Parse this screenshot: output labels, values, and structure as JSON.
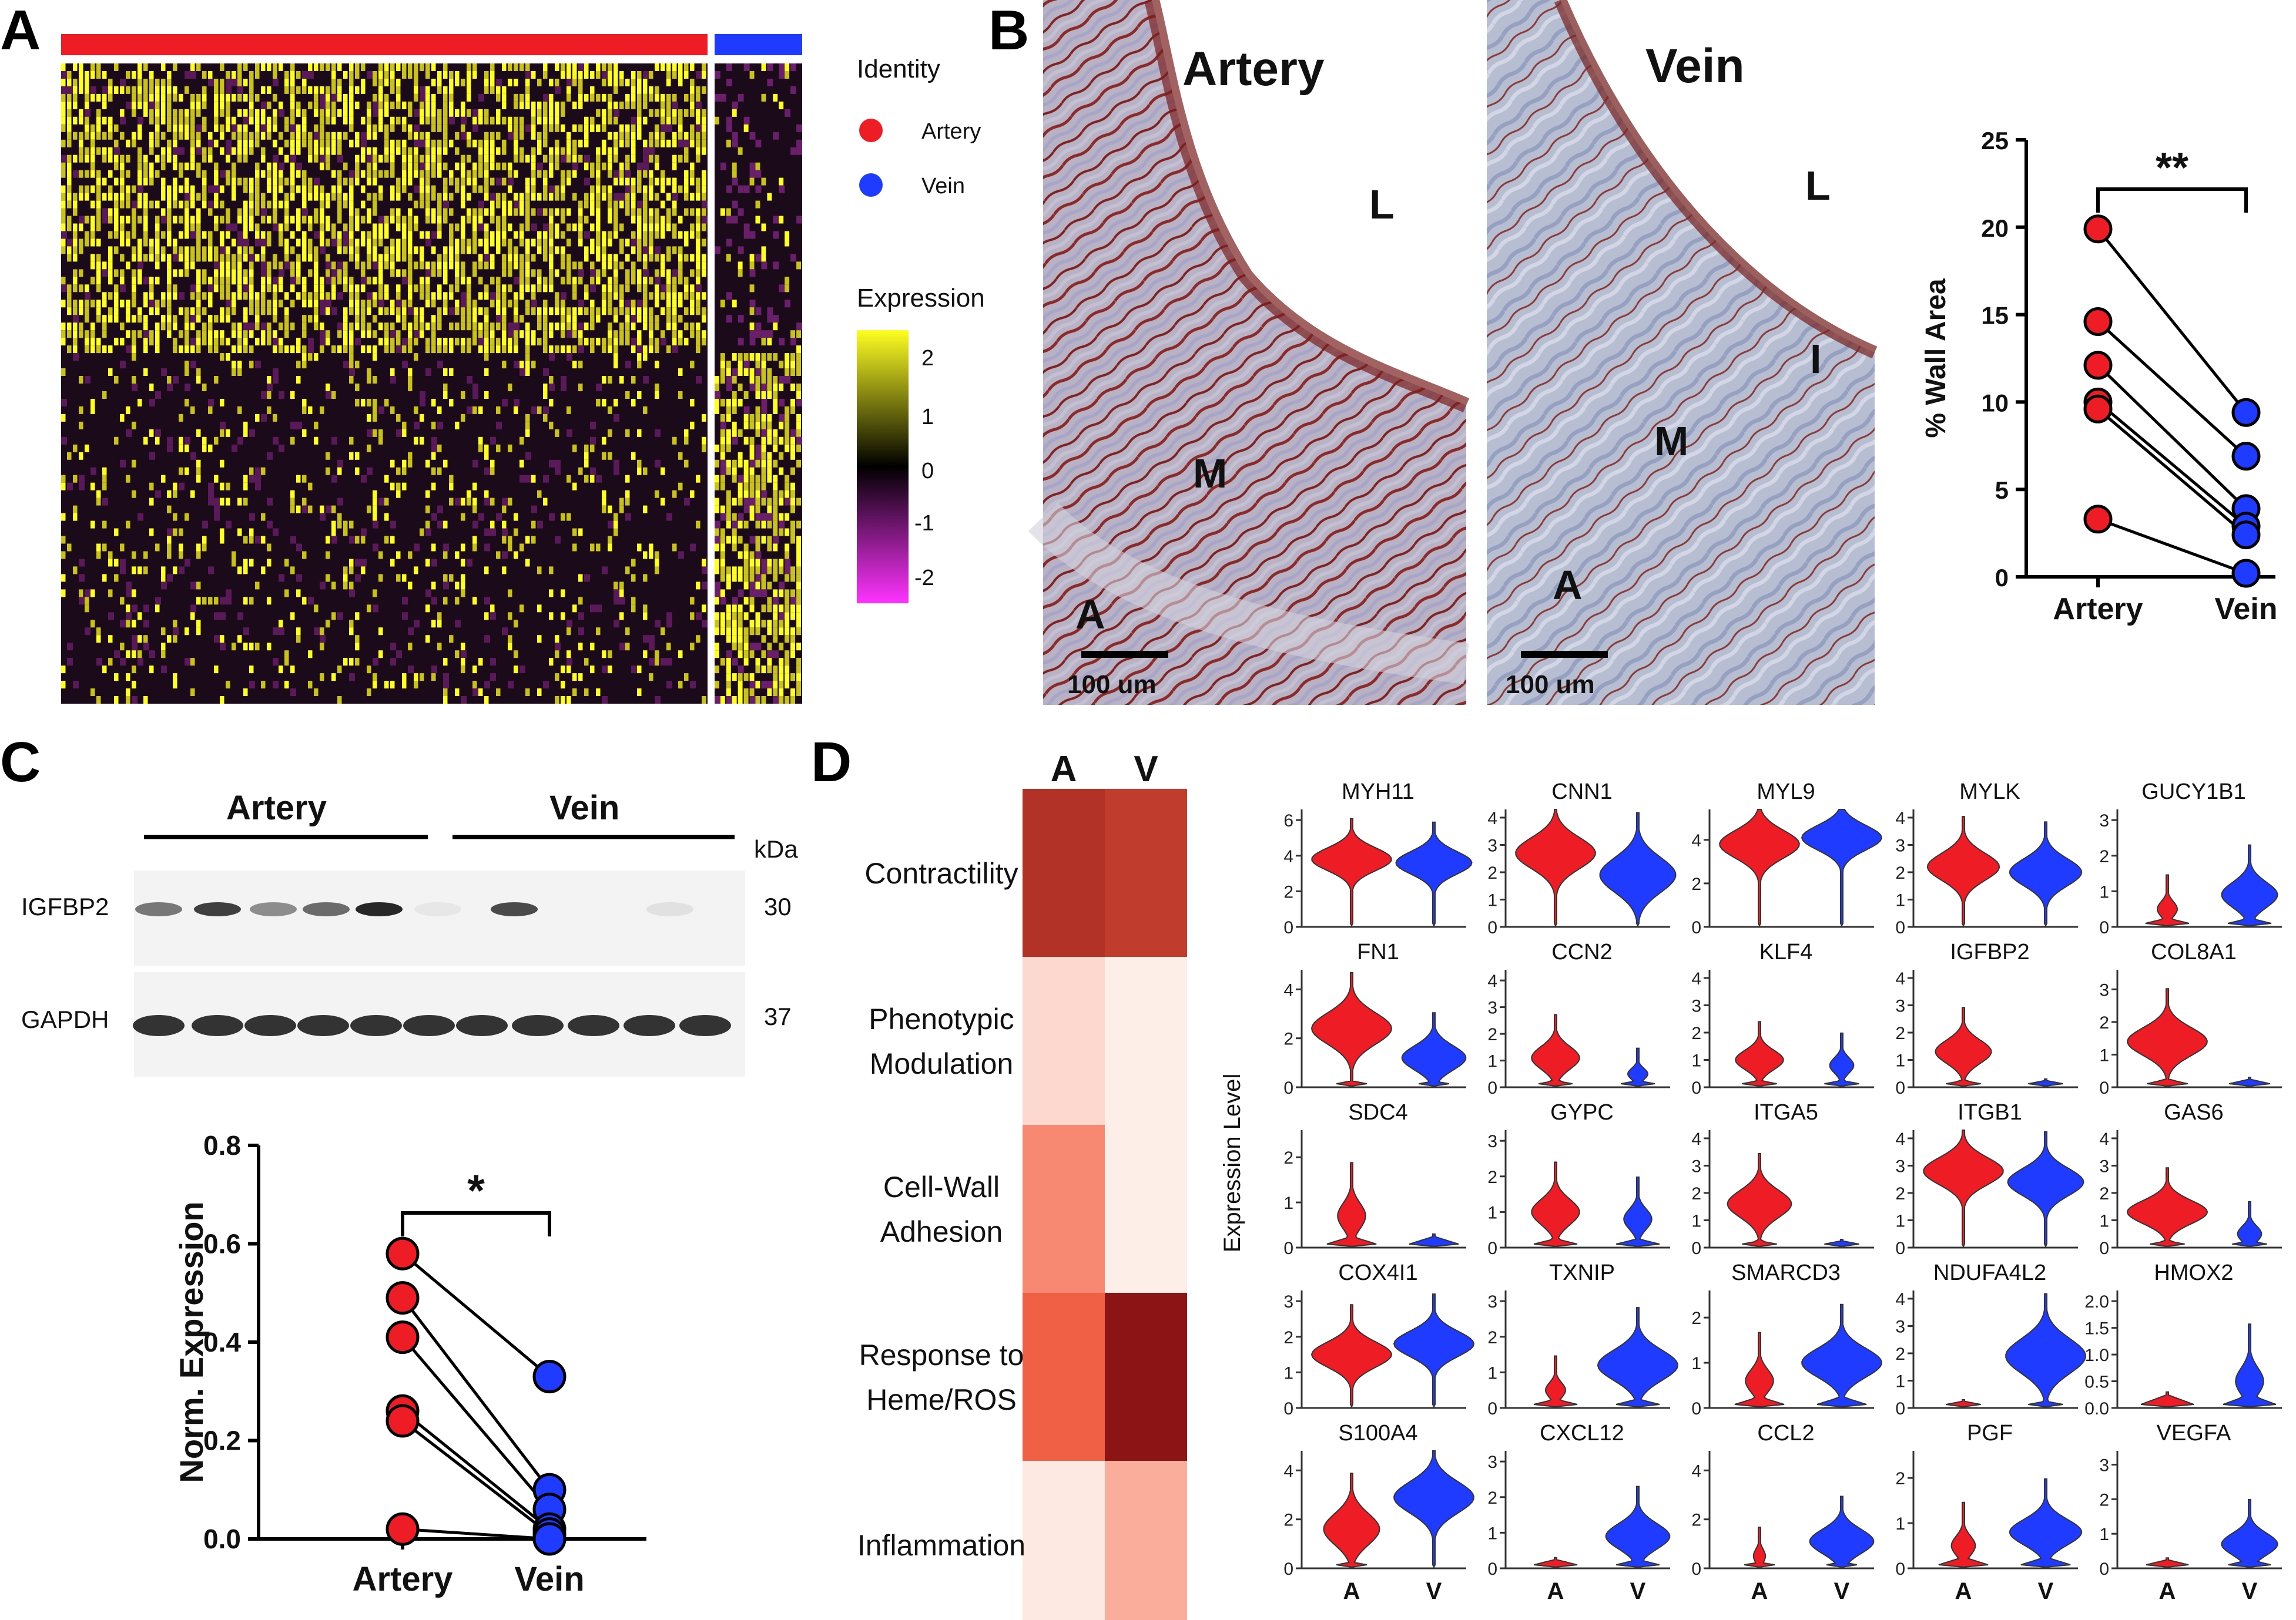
{
  "panels": {
    "a": "A",
    "b": "B",
    "c": "C",
    "d": "D"
  },
  "colors": {
    "artery": "#ee1c24",
    "vein": "#1f3bff",
    "heat_high": "#ffff22",
    "heat_mid": "#000000",
    "heat_low": "#ff33ff"
  },
  "heatmap_a": {
    "legend_identity_title": "Identity",
    "legend_identity": [
      {
        "label": "Artery",
        "color": "#ee1c24"
      },
      {
        "label": "Vein",
        "color": "#1f3bff"
      }
    ],
    "legend_expression_title": "Expression",
    "scale_ticks": [
      "2",
      "1",
      "0",
      "-1",
      "-2"
    ]
  },
  "histology_b": {
    "artery": {
      "title": "Artery",
      "labels": [
        "L",
        "M",
        "A"
      ],
      "scale": "100 um"
    },
    "vein": {
      "title": "Vein",
      "labels": [
        "L",
        "I",
        "M",
        "A"
      ],
      "scale": "100 um"
    }
  },
  "western_c": {
    "group_labels": [
      "Artery",
      "Vein"
    ],
    "kda_label": "kDa",
    "bands": [
      {
        "protein": "IGFBP2",
        "kda": "30"
      },
      {
        "protein": "GAPDH",
        "kda": "37"
      }
    ]
  },
  "heat_d": {
    "columns": [
      "A",
      "V"
    ],
    "rows": [
      {
        "label_lines": [
          "Contractility"
        ],
        "a": 0.85,
        "v": 0.8
      },
      {
        "label_lines": [
          "Phenotypic",
          "Modulation"
        ],
        "a": 0.12,
        "v": 0.03
      },
      {
        "label_lines": [
          "Cell-Wall",
          "Adhesion"
        ],
        "a": 0.45,
        "v": 0.03
      },
      {
        "label_lines": [
          "Response to",
          "Heme/ROS"
        ],
        "a": 0.62,
        "v": 1.0
      },
      {
        "label_lines": [
          "Inflammation"
        ],
        "a": 0.05,
        "v": 0.3
      }
    ]
  },
  "violin_d": {
    "ylabel": "Expression Level",
    "xcats": [
      "A",
      "V"
    ]
  },
  "chart_data": [
    {
      "type": "scatter",
      "title": "",
      "ylabel": "% Wall Area",
      "categories": [
        "Artery",
        "Vein"
      ],
      "ylim": [
        0,
        25
      ],
      "yticks": [
        "0",
        "5",
        "10",
        "15",
        "20",
        "25"
      ],
      "annotation": "**",
      "series": [
        {
          "name": "Artery",
          "values": [
            19.9,
            14.6,
            12.1,
            10.0,
            9.6,
            3.3
          ]
        },
        {
          "name": "Vein",
          "values": [
            9.4,
            6.9,
            3.9,
            2.9,
            2.4,
            0.2
          ]
        }
      ]
    },
    {
      "type": "scatter",
      "title": "",
      "ylabel": "Norm. Expression",
      "categories": [
        "Artery",
        "Vein"
      ],
      "ylim": [
        0,
        0.8
      ],
      "yticks": [
        "0.0",
        "0.2",
        "0.4",
        "0.6",
        "0.8"
      ],
      "annotation": "*",
      "series": [
        {
          "name": "Artery",
          "values": [
            0.58,
            0.49,
            0.41,
            0.26,
            0.24,
            0.02
          ]
        },
        {
          "name": "Vein",
          "values": [
            0.33,
            0.1,
            0.06,
            0.02,
            0.01,
            0.0
          ]
        }
      ]
    },
    {
      "type": "heatmap",
      "title": "",
      "groups": [
        "Artery",
        "Vein"
      ],
      "value_range": [
        -2.4,
        2.4
      ]
    },
    {
      "type": "violin",
      "ylabel": "Expression Level",
      "categories": [
        "A",
        "V"
      ],
      "genes": [
        {
          "gene": "MYH11",
          "ticks": [
            "0",
            "2",
            "4",
            "6"
          ],
          "ymax": 6.6,
          "a": {
            "c": 3.8,
            "w": 1,
            "s": 0.9
          },
          "v": {
            "c": 3.6,
            "w": 0.95,
            "s": 0.9
          }
        },
        {
          "gene": "CNN1",
          "ticks": [
            "0",
            "1",
            "2",
            "3",
            "4"
          ],
          "ymax": 4.3,
          "a": {
            "c": 2.7,
            "w": 1,
            "s": 0.8
          },
          "v": {
            "c": 1.9,
            "w": 0.95,
            "s": 0.9
          }
        },
        {
          "gene": "MYL9",
          "ticks": [
            "0",
            "2",
            "4"
          ],
          "ymax": 5.4,
          "a": {
            "c": 3.8,
            "w": 1,
            "s": 0.9
          },
          "v": {
            "c": 4.1,
            "w": 1,
            "s": 0.8
          }
        },
        {
          "gene": "MYLK",
          "ticks": [
            "0",
            "1",
            "2",
            "3",
            "4"
          ],
          "ymax": 4.3,
          "a": {
            "c": 2.2,
            "w": 0.9,
            "s": 0.7
          },
          "v": {
            "c": 2.0,
            "w": 0.9,
            "s": 0.7
          }
        },
        {
          "gene": "GUCY1B1",
          "ticks": [
            "0",
            "1",
            "2",
            "3"
          ],
          "ymax": 3.3,
          "a": {
            "c": 0.5,
            "w": 0.25,
            "s": 0.3,
            "z": true
          },
          "v": {
            "c": 0.9,
            "w": 0.7,
            "s": 0.5,
            "z": true
          }
        },
        {
          "gene": "FN1",
          "ticks": [
            "0",
            "2",
            "4"
          ],
          "ymax": 4.8,
          "a": {
            "c": 2.4,
            "w": 1,
            "s": 0.9,
            "z": true
          },
          "v": {
            "c": 1.2,
            "w": 0.8,
            "s": 0.7,
            "z": true
          }
        },
        {
          "gene": "CCN2",
          "ticks": [
            "0",
            "1",
            "2",
            "3",
            "4"
          ],
          "ymax": 4.4,
          "a": {
            "c": 1.1,
            "w": 0.6,
            "s": 0.6,
            "z": true
          },
          "v": {
            "c": 0.5,
            "w": 0.25,
            "s": 0.3,
            "z": true
          }
        },
        {
          "gene": "KLF4",
          "ticks": [
            "0",
            "1",
            "2",
            "3",
            "4"
          ],
          "ymax": 4.3,
          "a": {
            "c": 1.0,
            "w": 0.6,
            "s": 0.5,
            "z": true
          },
          "v": {
            "c": 0.8,
            "w": 0.3,
            "s": 0.4,
            "z": true
          }
        },
        {
          "gene": "IGFBP2",
          "ticks": [
            "0",
            "1",
            "2",
            "3",
            "4"
          ],
          "ymax": 4.3,
          "a": {
            "c": 1.3,
            "w": 0.7,
            "s": 0.6,
            "z": true
          },
          "v": {
            "c": 0,
            "w": 0,
            "s": 0,
            "z": true
          }
        },
        {
          "gene": "COL8A1",
          "ticks": [
            "0",
            "1",
            "2",
            "3"
          ],
          "ymax": 3.6,
          "a": {
            "c": 1.4,
            "w": 1,
            "s": 0.6,
            "z": true
          },
          "v": {
            "c": 0,
            "w": 0,
            "s": 0,
            "z": true
          }
        },
        {
          "gene": "SDC4",
          "ticks": [
            "0",
            "1",
            "2"
          ],
          "ymax": 2.6,
          "a": {
            "c": 0.7,
            "w": 0.35,
            "s": 0.4,
            "z": true
          },
          "v": {
            "c": 0,
            "w": 0,
            "s": 0,
            "z": true
          }
        },
        {
          "gene": "GYPC",
          "ticks": [
            "0",
            "1",
            "2",
            "3"
          ],
          "ymax": 3.3,
          "a": {
            "c": 1.0,
            "w": 0.6,
            "s": 0.5,
            "z": true
          },
          "v": {
            "c": 0.8,
            "w": 0.35,
            "s": 0.4,
            "z": true
          }
        },
        {
          "gene": "ITGA5",
          "ticks": [
            "0",
            "1",
            "2",
            "3",
            "4"
          ],
          "ymax": 4.3,
          "a": {
            "c": 1.6,
            "w": 0.8,
            "s": 0.7,
            "z": true
          },
          "v": {
            "c": 0,
            "w": 0,
            "s": 0,
            "z": true
          }
        },
        {
          "gene": "ITGB1",
          "ticks": [
            "0",
            "1",
            "2",
            "3",
            "4"
          ],
          "ymax": 4.3,
          "a": {
            "c": 2.8,
            "w": 1,
            "s": 0.7
          },
          "v": {
            "c": 2.4,
            "w": 0.95,
            "s": 0.7
          }
        },
        {
          "gene": "GAS6",
          "ticks": [
            "0",
            "1",
            "2",
            "3",
            "4"
          ],
          "ymax": 4.3,
          "a": {
            "c": 1.3,
            "w": 1,
            "s": 0.6,
            "z": true
          },
          "v": {
            "c": 0.5,
            "w": 0.3,
            "s": 0.4,
            "z": true
          }
        },
        {
          "gene": "COX4I1",
          "ticks": [
            "0",
            "1",
            "2",
            "3"
          ],
          "ymax": 3.3,
          "a": {
            "c": 1.5,
            "w": 1,
            "s": 0.5
          },
          "v": {
            "c": 1.8,
            "w": 1,
            "s": 0.5
          }
        },
        {
          "gene": "TXNIP",
          "ticks": [
            "0",
            "1",
            "2",
            "3"
          ],
          "ymax": 3.3,
          "a": {
            "c": 0.5,
            "w": 0.25,
            "s": 0.3,
            "z": true
          },
          "v": {
            "c": 1.2,
            "w": 1,
            "s": 0.6,
            "z": true
          }
        },
        {
          "gene": "SMARCD3",
          "ticks": [
            "0",
            "1",
            "2"
          ],
          "ymax": 2.6,
          "a": {
            "c": 0.6,
            "w": 0.35,
            "s": 0.35,
            "z": true
          },
          "v": {
            "c": 1.0,
            "w": 1,
            "s": 0.45,
            "z": true
          }
        },
        {
          "gene": "NDUFA4L2",
          "ticks": [
            "0",
            "1",
            "2",
            "3",
            "4"
          ],
          "ymax": 4.3,
          "a": {
            "c": 0,
            "w": 0,
            "s": 0,
            "z": true
          },
          "v": {
            "c": 1.9,
            "w": 1,
            "s": 0.9,
            "z": true
          }
        },
        {
          "gene": "HMOX2",
          "ticks": [
            "0.0",
            "0.5",
            "1.0",
            "1.5",
            "2.0"
          ],
          "ymax": 2.2,
          "a": {
            "c": 0,
            "w": 0,
            "s": 0,
            "z": true
          },
          "v": {
            "c": 0.5,
            "w": 0.35,
            "s": 0.35,
            "z": true
          }
        },
        {
          "gene": "S100A4",
          "ticks": [
            "0",
            "2",
            "4"
          ],
          "ymax": 4.8,
          "a": {
            "c": 1.6,
            "w": 0.7,
            "s": 0.9,
            "z": true
          },
          "v": {
            "c": 2.9,
            "w": 1,
            "s": 0.9
          }
        },
        {
          "gene": "CXCL12",
          "ticks": [
            "0",
            "1",
            "2",
            "3"
          ],
          "ymax": 3.3,
          "a": {
            "c": 0,
            "w": 0,
            "s": 0,
            "z": true
          },
          "v": {
            "c": 0.9,
            "w": 0.8,
            "s": 0.5,
            "z": true
          }
        },
        {
          "gene": "CCL2",
          "ticks": [
            "0",
            "2",
            "4"
          ],
          "ymax": 4.8,
          "a": {
            "c": 0.5,
            "w": 0.15,
            "s": 0.4,
            "z": true
          },
          "v": {
            "c": 1.1,
            "w": 0.8,
            "s": 0.7,
            "z": true
          }
        },
        {
          "gene": "PGF",
          "ticks": [
            "0",
            "1",
            "2"
          ],
          "ymax": 2.6,
          "a": {
            "c": 0.5,
            "w": 0.3,
            "s": 0.3,
            "z": true
          },
          "v": {
            "c": 0.8,
            "w": 0.9,
            "s": 0.4,
            "z": true
          }
        },
        {
          "gene": "VEGFA",
          "ticks": [
            "0",
            "1",
            "2",
            "3"
          ],
          "ymax": 3.4,
          "a": {
            "c": 0,
            "w": 0,
            "s": 0,
            "z": true
          },
          "v": {
            "c": 0.7,
            "w": 0.7,
            "s": 0.45,
            "z": true
          }
        }
      ]
    }
  ]
}
